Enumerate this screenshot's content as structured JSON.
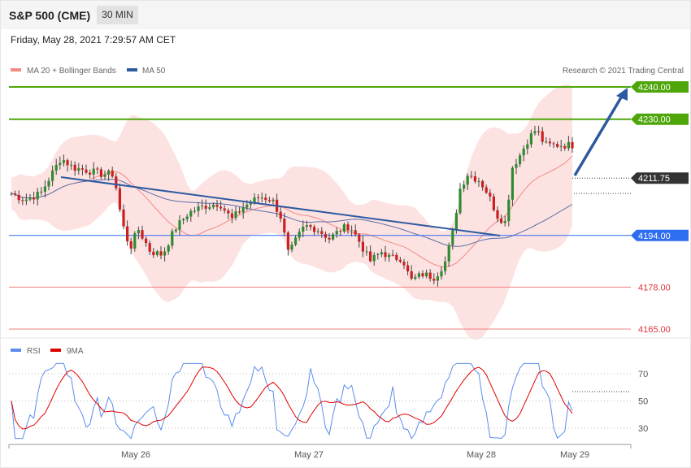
{
  "header": {
    "title": "S&P 500 (CME)",
    "timeframe": "30 MIN",
    "datetime": "Friday, May 28, 2021 7:29:57 AM CET"
  },
  "legend": {
    "ma20_label": "MA 20 + Bollinger Bands",
    "ma50_label": "MA 50",
    "ma20_color": "#f28b82",
    "ma50_color": "#2c5aa0",
    "credit": "Research © 2021 Trading Central"
  },
  "rsi_legend": {
    "rsi_label": "RSI",
    "ma_label": "9MA",
    "rsi_color": "#5b8def",
    "ma_color": "#e00000"
  },
  "chart_data": {
    "type": "line",
    "price_ylim": [
      4160.5,
      4250.5
    ],
    "levels": [
      {
        "value": 4240.0,
        "label": "4240.00",
        "color": "#4ea60b",
        "kind": "target"
      },
      {
        "value": 4230.0,
        "label": "4230.00",
        "color": "#4ea60b",
        "kind": "target"
      },
      {
        "value": 4211.75,
        "label": "4211.75",
        "color": "#333333",
        "kind": "last"
      },
      {
        "value": 4194.0,
        "label": "4194.00",
        "color": "#2f6df0",
        "kind": "pivot"
      },
      {
        "value": 4178.0,
        "label": "4178.00",
        "color": "#e0353a",
        "kind": "support"
      },
      {
        "value": 4165.0,
        "label": "4165.00",
        "color": "#e0353a",
        "kind": "support"
      }
    ],
    "x_ticks": [
      "May 26",
      "May 27",
      "May 28",
      "May 29"
    ],
    "rsi_ticks": [
      70,
      50,
      30
    ],
    "rsi_ylim": [
      16,
      84
    ]
  }
}
